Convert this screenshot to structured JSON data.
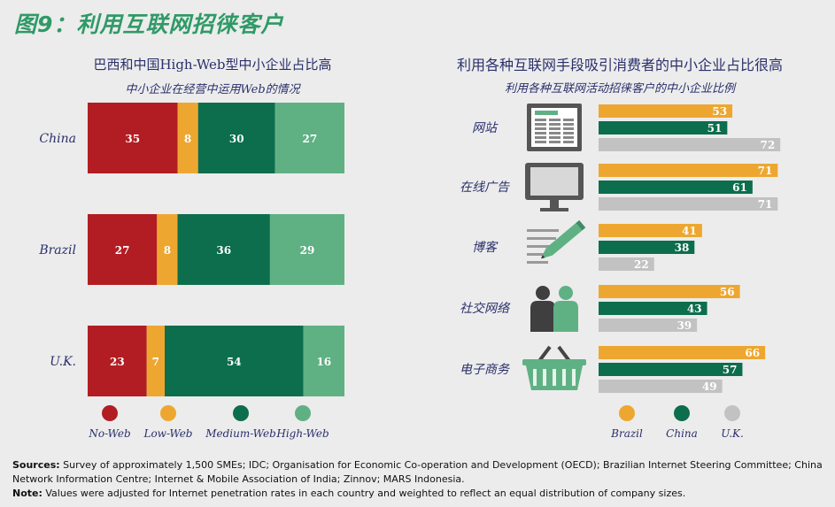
{
  "figure_title": "图9：利用互联网招徕客户",
  "chart_data": [
    {
      "type": "bar",
      "orientation": "horizontal-stacked-percent",
      "title": "巴西和中国High-Web型中小企业占比高",
      "subtitle": "中小企业在经营中运用Web的情况",
      "categories": [
        "China",
        "Brazil",
        "U.K."
      ],
      "series": [
        {
          "name": "No-Web",
          "color": "#b21d23",
          "values": [
            35,
            27,
            23
          ]
        },
        {
          "name": "Low-Web",
          "color": "#eda730",
          "values": [
            8,
            8,
            7
          ]
        },
        {
          "name": "Medium-Web",
          "color": "#0c6e4c",
          "values": [
            30,
            36,
            54
          ]
        },
        {
          "name": "High-Web",
          "color": "#5fb184",
          "values": [
            27,
            29,
            16
          ]
        }
      ]
    },
    {
      "type": "bar",
      "orientation": "horizontal-grouped",
      "title": "利用各种互联网手段吸引消费者的中小企业占比很高",
      "subtitle": "利用各种互联网活动招徕客户的中小企业比例",
      "categories": [
        "网站",
        "在线广告",
        "博客",
        "社交网络",
        "电子商务"
      ],
      "icons": [
        "website-icon",
        "monitor-icon",
        "pencil-icon",
        "people-icon",
        "basket-icon"
      ],
      "series": [
        {
          "name": "Brazil",
          "color": "#eda730",
          "values": [
            53,
            71,
            41,
            56,
            66
          ]
        },
        {
          "name": "China",
          "color": "#0c6e4c",
          "values": [
            51,
            61,
            38,
            43,
            57
          ]
        },
        {
          "name": "U.K.",
          "color": "#c2c2c2",
          "values": [
            72,
            71,
            22,
            39,
            49
          ]
        }
      ]
    }
  ],
  "footnote": {
    "sources_label": "Sources:",
    "sources_text": "Survey of approximately 1,500 SMEs; IDC; Organisation for Economic Co-operation and Development (OECD); Brazilian Internet Steering Committee; China Network Information Centre; Internet & Mobile Association of India; Zinnov; MARS Indonesia.",
    "note_label": "Note:",
    "note_text": "Values were adjusted for Internet penetration rates in each country and weighted to reflect an equal distribution of company sizes."
  }
}
